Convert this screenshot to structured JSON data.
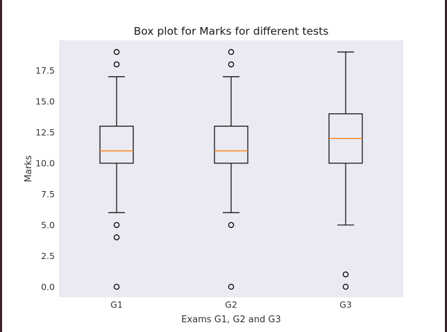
{
  "chart_data": {
    "type": "box",
    "title": "Box plot for Marks for different tests",
    "xlabel": "Exams G1, G2 and G3",
    "ylabel": "Marks",
    "categories": [
      "G1",
      "G2",
      "G3"
    ],
    "ylim": [
      -0.85,
      19.95
    ],
    "yticks": [
      0.0,
      2.5,
      5.0,
      7.5,
      10.0,
      12.5,
      15.0,
      17.5
    ],
    "ytick_labels": [
      "0.0",
      "2.5",
      "5.0",
      "7.5",
      "10.0",
      "12.5",
      "15.0",
      "17.5"
    ],
    "grid": false,
    "boxes": [
      {
        "category": "G1",
        "whisker_low": 6,
        "q1": 10,
        "median": 11,
        "q3": 13,
        "whisker_high": 17,
        "outliers": [
          0,
          4,
          5,
          18,
          19
        ]
      },
      {
        "category": "G2",
        "whisker_low": 6,
        "q1": 10,
        "median": 11,
        "q3": 13,
        "whisker_high": 17,
        "outliers": [
          0,
          5,
          18,
          19
        ]
      },
      {
        "category": "G3",
        "whisker_low": 5,
        "q1": 10,
        "median": 12,
        "q3": 14,
        "whisker_high": 19,
        "outliers": [
          0,
          1
        ]
      }
    ],
    "colors": {
      "plot_background": "#eaeaf2",
      "box_edge": "#000000",
      "median": "#ff7f0e",
      "outlier_edge": "#000000"
    }
  }
}
